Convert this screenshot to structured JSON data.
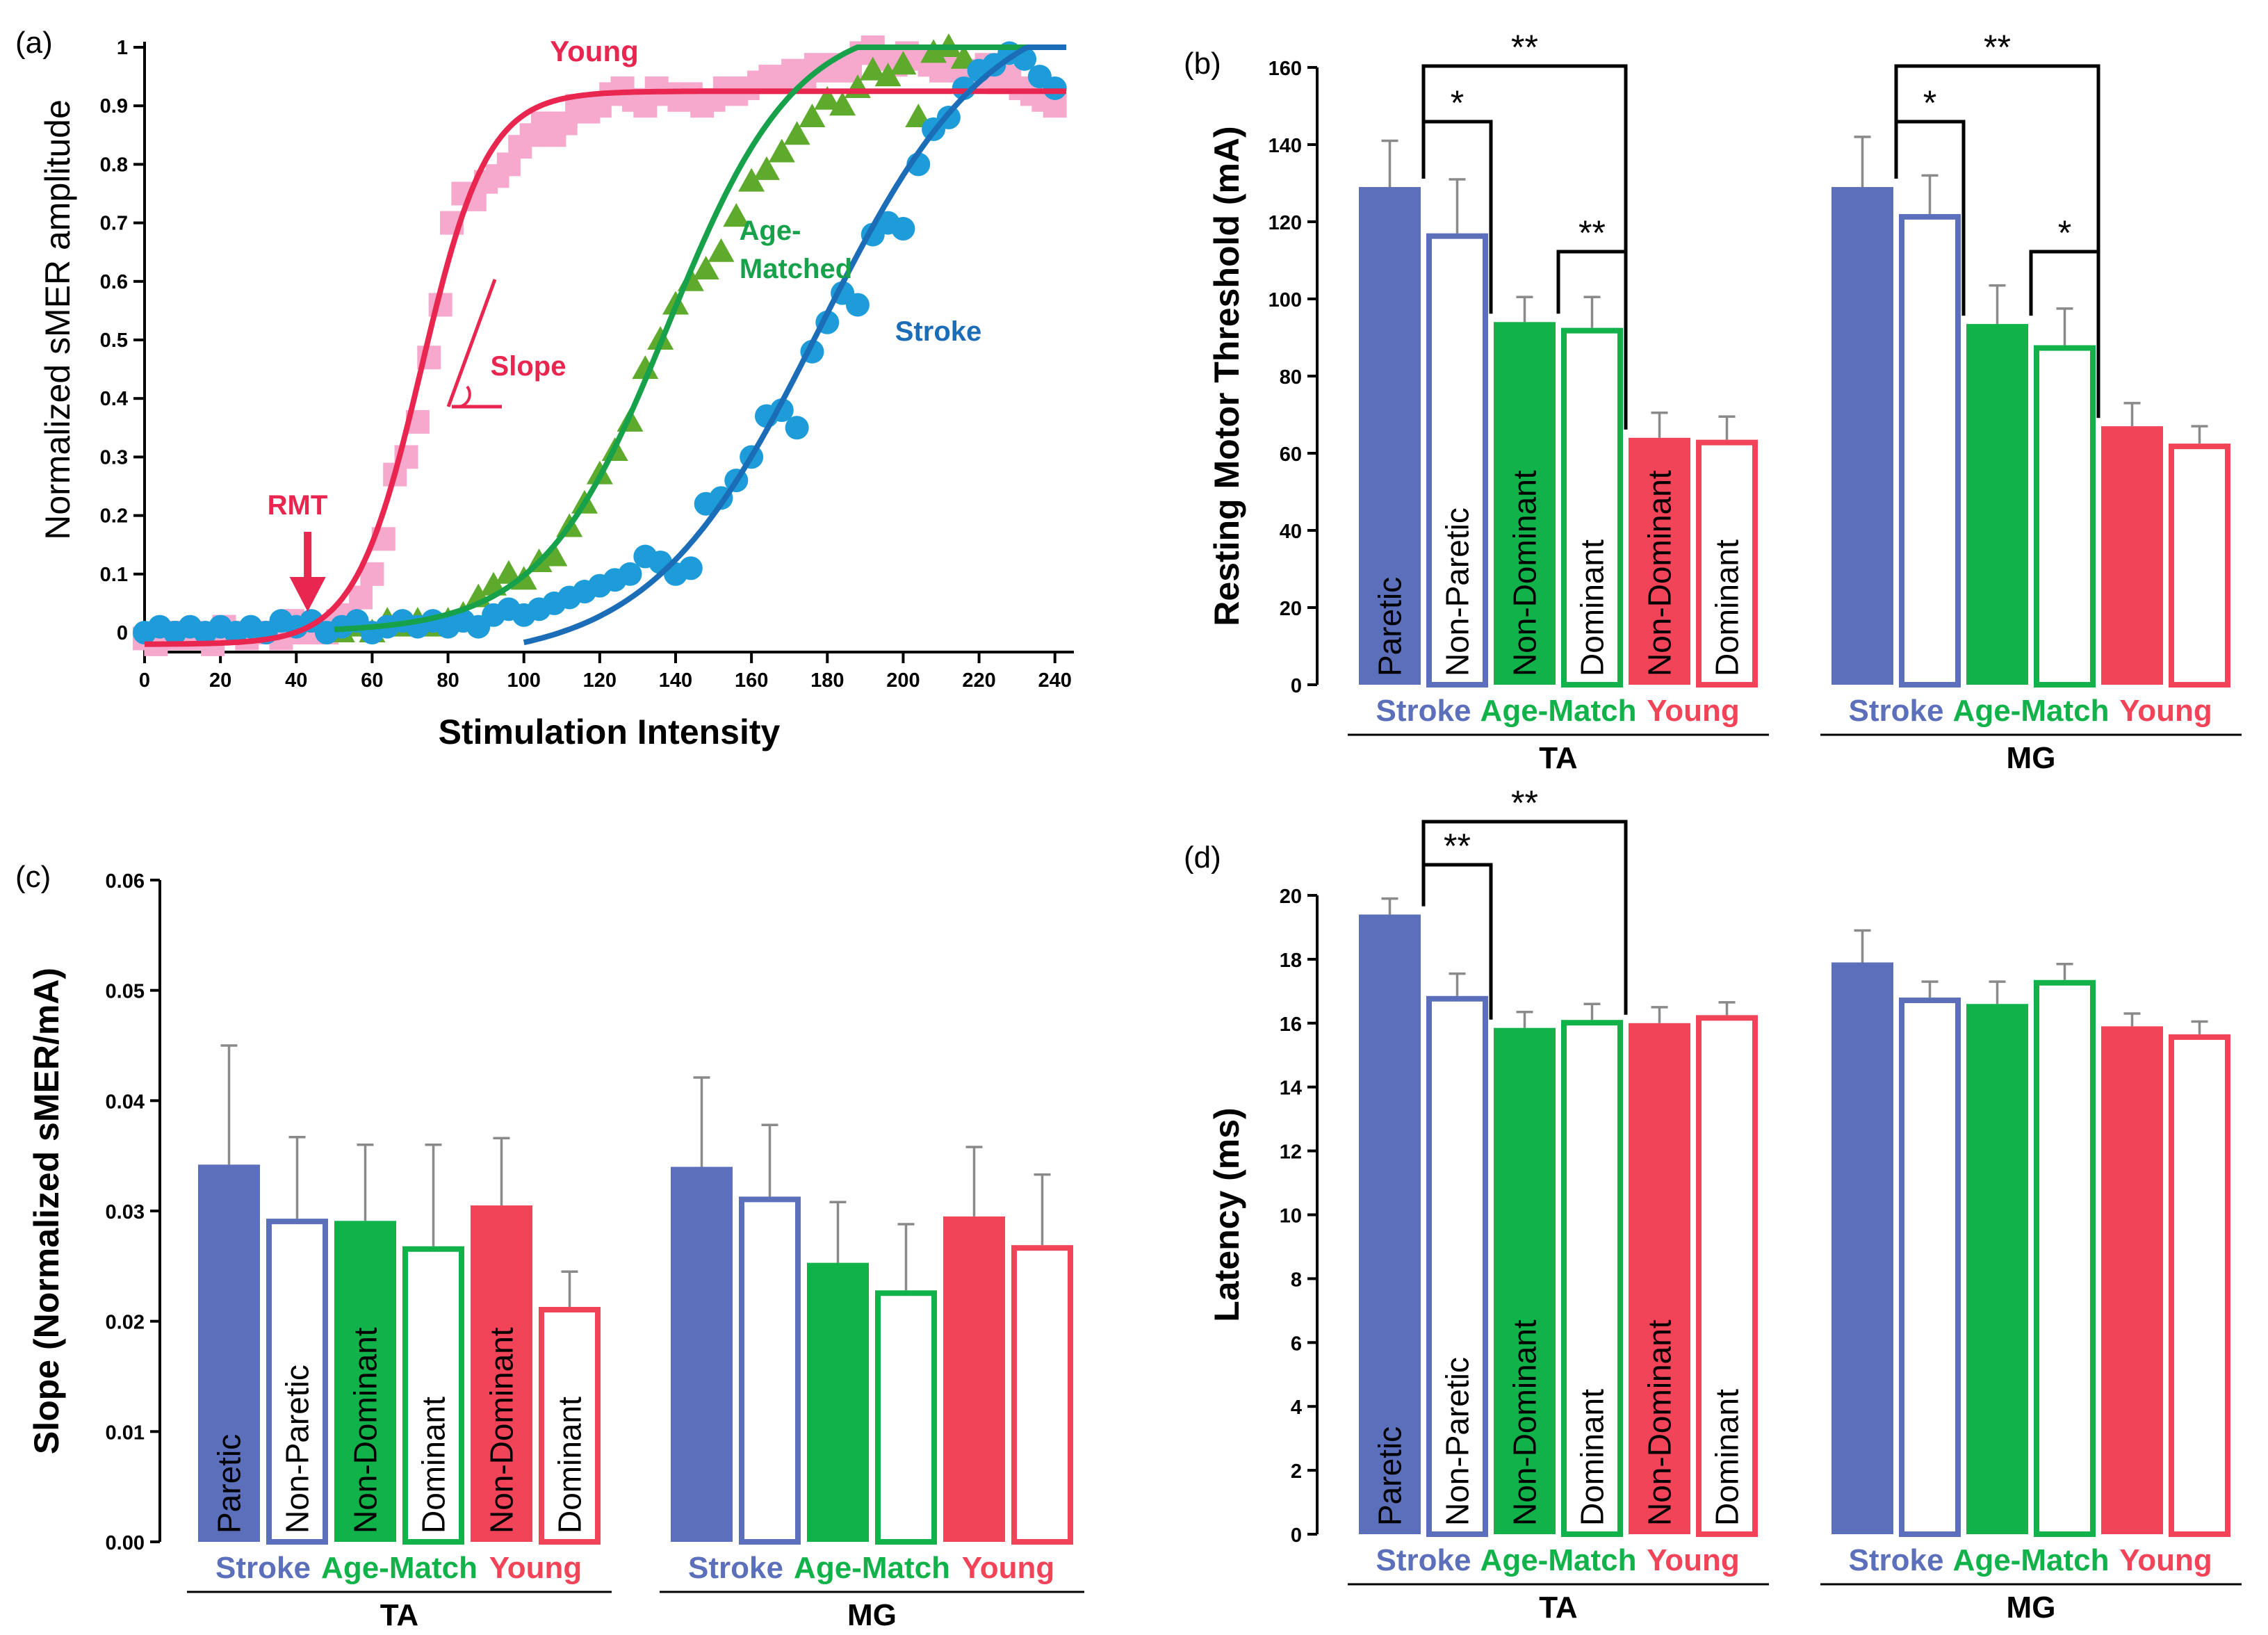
{
  "colors": {
    "stroke": "#5B6FBB",
    "age_match": "#12B24A",
    "young": "#F24458",
    "young_markers": "#F6A9CC",
    "age_markers": "#5DAA2C",
    "stroke_markers": "#1E9CD9",
    "stroke_curve": "#1C6DB8",
    "age_curve": "#17A14A",
    "young_curve": "#E8264F",
    "error_bar": "#8a8a8a"
  },
  "panels": {
    "a": {
      "label": "(a)"
    },
    "b": {
      "label": "(b)"
    },
    "c": {
      "label": "(c)"
    },
    "d": {
      "label": "(d)"
    }
  },
  "chart_data": [
    {
      "id": "a",
      "type": "scatter",
      "title": "",
      "xlabel": "Stimulation Intensity",
      "ylabel": "Normalized sMER amplitude",
      "xlim": [
        0,
        245
      ],
      "ylim": [
        -0.03,
        1.0
      ],
      "xticks": [
        0,
        20,
        40,
        60,
        80,
        100,
        120,
        140,
        160,
        180,
        200,
        220,
        240
      ],
      "yticks": [
        0,
        0.1,
        0.2,
        0.3,
        0.4,
        0.5,
        0.6,
        0.7,
        0.8,
        0.9,
        1
      ],
      "yticklabels": [
        "0",
        "0.1",
        "0.2",
        "0.3",
        "0.4",
        "0.5",
        "0.6",
        "0.7",
        "0.8",
        "0.9",
        "1"
      ],
      "series": [
        {
          "name": "Young",
          "marker": "square",
          "fit": {
            "low": -0.02,
            "high": 0.925,
            "mid": 73,
            "k": 0.115
          },
          "points": [
            [
              0,
              -0.01
            ],
            [
              3,
              -0.02
            ],
            [
              6,
              0.0
            ],
            [
              9,
              -0.01
            ],
            [
              12,
              0.0
            ],
            [
              15,
              -0.01
            ],
            [
              18,
              -0.02
            ],
            [
              21,
              0.01
            ],
            [
              24,
              0.0
            ],
            [
              27,
              -0.01
            ],
            [
              30,
              0.0
            ],
            [
              33,
              0.0
            ],
            [
              36,
              -0.01
            ],
            [
              39,
              0.02
            ],
            [
              42,
              0.0
            ],
            [
              45,
              0.01
            ],
            [
              48,
              0.0
            ],
            [
              51,
              0.02
            ],
            [
              54,
              0.03
            ],
            [
              57,
              0.06
            ],
            [
              60,
              0.1
            ],
            [
              63,
              0.16
            ],
            [
              66,
              0.27
            ],
            [
              69,
              0.3
            ],
            [
              72,
              0.36
            ],
            [
              75,
              0.47
            ],
            [
              78,
              0.56
            ],
            [
              81,
              0.7
            ],
            [
              84,
              0.75
            ],
            [
              87,
              0.74
            ],
            [
              90,
              0.77
            ],
            [
              93,
              0.78
            ],
            [
              96,
              0.8
            ],
            [
              99,
              0.83
            ],
            [
              102,
              0.85
            ],
            [
              105,
              0.87
            ],
            [
              108,
              0.85
            ],
            [
              111,
              0.87
            ],
            [
              114,
              0.9
            ],
            [
              117,
              0.89
            ],
            [
              120,
              0.9
            ],
            [
              123,
              0.92
            ],
            [
              126,
              0.93
            ],
            [
              129,
              0.91
            ],
            [
              132,
              0.9
            ],
            [
              135,
              0.93
            ],
            [
              138,
              0.92
            ],
            [
              141,
              0.91
            ],
            [
              144,
              0.92
            ],
            [
              147,
              0.9
            ],
            [
              150,
              0.91
            ],
            [
              153,
              0.93
            ],
            [
              156,
              0.92
            ],
            [
              159,
              0.93
            ],
            [
              162,
              0.94
            ],
            [
              165,
              0.95
            ],
            [
              168,
              0.94
            ],
            [
              171,
              0.96
            ],
            [
              174,
              0.95
            ],
            [
              177,
              0.97
            ],
            [
              180,
              0.96
            ],
            [
              183,
              0.97
            ],
            [
              186,
              0.96
            ],
            [
              189,
              0.99
            ],
            [
              192,
              1.0
            ],
            [
              195,
              0.98
            ],
            [
              198,
              0.97
            ],
            [
              201,
              0.99
            ],
            [
              204,
              0.98
            ],
            [
              207,
              0.97
            ],
            [
              210,
              0.96
            ],
            [
              213,
              0.97
            ],
            [
              216,
              0.96
            ],
            [
              219,
              0.95
            ],
            [
              222,
              0.97
            ],
            [
              225,
              0.94
            ],
            [
              228,
              0.95
            ],
            [
              231,
              0.93
            ],
            [
              234,
              0.92
            ],
            [
              237,
              0.91
            ],
            [
              240,
              0.9
            ]
          ]
        },
        {
          "name": "Age-Matched",
          "marker": "triangle",
          "fit": {
            "low": 0.0,
            "high": 1.05,
            "mid": 138,
            "k": 0.06
          },
          "points": [
            [
              52,
              0.0
            ],
            [
              56,
              0.01
            ],
            [
              60,
              0.0
            ],
            [
              64,
              0.02
            ],
            [
              68,
              0.01
            ],
            [
              72,
              0.02
            ],
            [
              76,
              0.01
            ],
            [
              80,
              0.02
            ],
            [
              84,
              0.03
            ],
            [
              88,
              0.06
            ],
            [
              92,
              0.08
            ],
            [
              96,
              0.1
            ],
            [
              100,
              0.09
            ],
            [
              104,
              0.12
            ],
            [
              108,
              0.13
            ],
            [
              112,
              0.18
            ],
            [
              116,
              0.22
            ],
            [
              120,
              0.27
            ],
            [
              124,
              0.31
            ],
            [
              128,
              0.36
            ],
            [
              132,
              0.45
            ],
            [
              136,
              0.5
            ],
            [
              140,
              0.56
            ],
            [
              144,
              0.6
            ],
            [
              148,
              0.62
            ],
            [
              152,
              0.65
            ],
            [
              156,
              0.71
            ],
            [
              160,
              0.77
            ],
            [
              164,
              0.79
            ],
            [
              168,
              0.82
            ],
            [
              172,
              0.85
            ],
            [
              176,
              0.88
            ],
            [
              180,
              0.91
            ],
            [
              184,
              0.9
            ],
            [
              188,
              0.93
            ],
            [
              192,
              0.96
            ],
            [
              196,
              0.95
            ],
            [
              200,
              0.97
            ],
            [
              204,
              0.88
            ],
            [
              208,
              0.99
            ],
            [
              212,
              1.0
            ],
            [
              216,
              0.98
            ]
          ]
        },
        {
          "name": "Stroke",
          "marker": "circle",
          "fit": {
            "low": -0.05,
            "high": 1.09,
            "mid": 178,
            "k": 0.045
          },
          "points": [
            [
              0,
              0.0
            ],
            [
              4,
              0.01
            ],
            [
              8,
              0.0
            ],
            [
              12,
              0.01
            ],
            [
              16,
              0.0
            ],
            [
              20,
              0.01
            ],
            [
              24,
              0.0
            ],
            [
              28,
              0.01
            ],
            [
              32,
              0.0
            ],
            [
              36,
              0.02
            ],
            [
              40,
              0.01
            ],
            [
              44,
              0.02
            ],
            [
              48,
              0.0
            ],
            [
              52,
              0.01
            ],
            [
              56,
              0.02
            ],
            [
              60,
              0.0
            ],
            [
              64,
              0.01
            ],
            [
              68,
              0.02
            ],
            [
              72,
              0.01
            ],
            [
              76,
              0.02
            ],
            [
              80,
              0.01
            ],
            [
              84,
              0.02
            ],
            [
              88,
              0.01
            ],
            [
              92,
              0.03
            ],
            [
              96,
              0.04
            ],
            [
              100,
              0.03
            ],
            [
              104,
              0.04
            ],
            [
              108,
              0.05
            ],
            [
              112,
              0.06
            ],
            [
              116,
              0.07
            ],
            [
              120,
              0.08
            ],
            [
              124,
              0.09
            ],
            [
              128,
              0.1
            ],
            [
              132,
              0.13
            ],
            [
              136,
              0.12
            ],
            [
              140,
              0.1
            ],
            [
              144,
              0.11
            ],
            [
              148,
              0.22
            ],
            [
              152,
              0.23
            ],
            [
              156,
              0.26
            ],
            [
              160,
              0.3
            ],
            [
              164,
              0.37
            ],
            [
              168,
              0.38
            ],
            [
              172,
              0.35
            ],
            [
              176,
              0.48
            ],
            [
              180,
              0.53
            ],
            [
              184,
              0.58
            ],
            [
              188,
              0.56
            ],
            [
              192,
              0.68
            ],
            [
              196,
              0.7
            ],
            [
              200,
              0.69
            ],
            [
              204,
              0.8
            ],
            [
              208,
              0.86
            ],
            [
              212,
              0.88
            ],
            [
              216,
              0.93
            ],
            [
              220,
              0.96
            ],
            [
              224,
              0.97
            ],
            [
              228,
              0.99
            ],
            [
              232,
              0.98
            ],
            [
              236,
              0.95
            ],
            [
              240,
              0.93
            ]
          ]
        }
      ],
      "annotations": {
        "young": "Young",
        "age_line1": "Age-",
        "age_line2": "Matched",
        "stroke": "Stroke",
        "slope": "Slope",
        "rmt": "RMT",
        "rmt_x": 43
      }
    },
    {
      "id": "b",
      "type": "bar",
      "title": "",
      "xlabel": "",
      "ylabel": "Resting Motor Threshold (mA)",
      "ylim": [
        0,
        160
      ],
      "yticks": [
        0,
        20,
        40,
        60,
        80,
        100,
        120,
        140,
        160
      ],
      "yticklabels": [
        "0",
        "20",
        "40",
        "60",
        "80",
        "100",
        "120",
        "140",
        "160"
      ],
      "groups": [
        "TA",
        "MG"
      ],
      "subgroups": [
        "Stroke",
        "Age-Match",
        "Young"
      ],
      "bar_labels": [
        "Paretic",
        "Non-Paretic",
        "Non-Dominant",
        "Dominant",
        "Non-Dominant",
        "Dominant"
      ],
      "series": [
        {
          "name": "TA",
          "values": [
            129,
            117,
            94,
            92.5,
            64,
            63.5
          ],
          "errors": [
            12,
            14,
            6.5,
            8,
            6.5,
            6
          ]
        },
        {
          "name": "MG",
          "values": [
            129,
            122,
            93.5,
            88,
            67,
            62.5
          ],
          "errors": [
            13,
            10,
            10,
            9.5,
            6,
            4.5
          ]
        }
      ],
      "significance": [
        {
          "group": 0,
          "from": 0,
          "to": 2,
          "text": "*"
        },
        {
          "group": 0,
          "from": 0,
          "to": 4,
          "text": "**"
        },
        {
          "group": 0,
          "from": 2,
          "to": 4,
          "text": "**"
        },
        {
          "group": 1,
          "from": 0,
          "to": 2,
          "text": "*"
        },
        {
          "group": 1,
          "from": 0,
          "to": 4,
          "text": "**"
        },
        {
          "group": 1,
          "from": 2,
          "to": 4,
          "text": "*"
        }
      ]
    },
    {
      "id": "c",
      "type": "bar",
      "title": "",
      "xlabel": "",
      "ylabel": "Slope (Normalized sMER/mA)",
      "ylim": [
        0,
        0.06
      ],
      "yticks": [
        0,
        0.01,
        0.02,
        0.03,
        0.04,
        0.05,
        0.06
      ],
      "yticklabels": [
        "0.00",
        "0.01",
        "0.02",
        "0.03",
        "0.04",
        "0.05",
        "0.06"
      ],
      "groups": [
        "TA",
        "MG"
      ],
      "subgroups": [
        "Stroke",
        "Age-Match",
        "Young"
      ],
      "bar_labels": [
        "Paretic",
        "Non-Paretic",
        "Non-Dominant",
        "Dominant",
        "Non-Dominant",
        "Dominant"
      ],
      "series": [
        {
          "name": "TA",
          "values": [
            0.0342,
            0.0293,
            0.0291,
            0.0268,
            0.0305,
            0.0213
          ],
          "errors": [
            0.0108,
            0.0074,
            0.0069,
            0.0092,
            0.0061,
            0.0032
          ]
        },
        {
          "name": "MG",
          "values": [
            0.034,
            0.0313,
            0.0253,
            0.0228,
            0.0295,
            0.0269
          ],
          "errors": [
            0.0081,
            0.0065,
            0.0055,
            0.006,
            0.0063,
            0.0064
          ]
        }
      ],
      "significance": []
    },
    {
      "id": "d",
      "type": "bar",
      "title": "",
      "xlabel": "",
      "ylabel": "Latency (ms)",
      "ylim": [
        0,
        20
      ],
      "yticks": [
        0,
        2,
        4,
        6,
        8,
        10,
        12,
        14,
        16,
        18,
        20
      ],
      "yticklabels": [
        "0",
        "2",
        "4",
        "6",
        "8",
        "10",
        "12",
        "14",
        "16",
        "18",
        "20"
      ],
      "groups": [
        "TA",
        "MG"
      ],
      "subgroups": [
        "Stroke",
        "Age-Match",
        "Young"
      ],
      "bar_labels": [
        "Paretic",
        "Non-Paretic",
        "Non-Dominant",
        "Dominant",
        "Non-Dominant",
        "Dominant"
      ],
      "series": [
        {
          "name": "TA",
          "values": [
            19.4,
            16.85,
            15.85,
            16.1,
            16.0,
            16.25
          ],
          "errors": [
            0.5,
            0.7,
            0.5,
            0.5,
            0.5,
            0.4
          ]
        },
        {
          "name": "MG",
          "values": [
            17.9,
            16.8,
            16.6,
            17.35,
            15.9,
            15.65
          ],
          "errors": [
            1.0,
            0.5,
            0.7,
            0.5,
            0.4,
            0.4
          ]
        }
      ],
      "significance": [
        {
          "group": 0,
          "from": 0,
          "to": 2,
          "text": "**"
        },
        {
          "group": 0,
          "from": 0,
          "to": 4,
          "text": "**"
        }
      ]
    }
  ]
}
